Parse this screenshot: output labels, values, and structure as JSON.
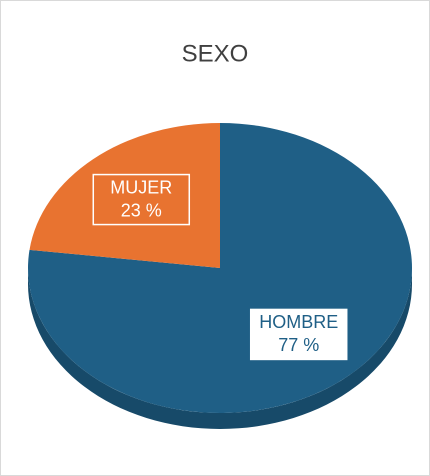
{
  "chart_data": {
    "type": "pie",
    "title": "SEXO",
    "categories": [
      "HOMBRE",
      "MUJER"
    ],
    "values": [
      77,
      23
    ],
    "value_labels": [
      "77 %",
      "23 %"
    ],
    "colors": [
      "#1f5f86",
      "#e87330"
    ]
  }
}
